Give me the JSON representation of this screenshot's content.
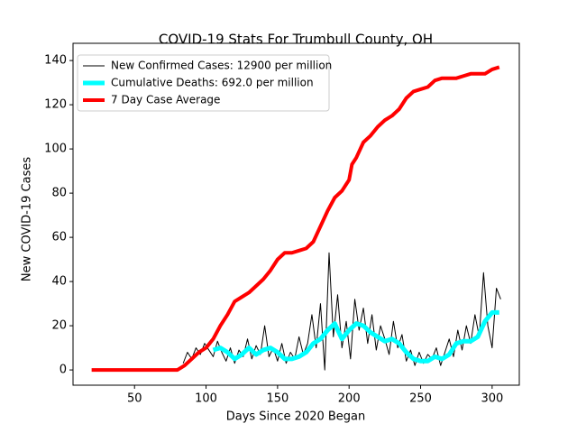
{
  "chart_data": {
    "type": "line",
    "title": "COVID-19 Stats For Trumbull County, OH",
    "x_label": "Days Since 2020 Began",
    "y_label": "New COVID-19 Cases",
    "xlim": [
      7,
      319
    ],
    "ylim": [
      -6.9,
      147.8
    ],
    "xticks": [
      50,
      100,
      150,
      200,
      250,
      300
    ],
    "yticks": [
      0,
      20,
      40,
      60,
      80,
      100,
      120,
      140
    ],
    "legend": "upper left",
    "series": [
      {
        "name": "New Confirmed Cases: 12900 per million",
        "color": "#000000",
        "linewidth": 1,
        "x": [
          84,
          87,
          90,
          93,
          96,
          99,
          102,
          105,
          108,
          111,
          114,
          117,
          120,
          123,
          126,
          129,
          132,
          135,
          138,
          141,
          144,
          147,
          150,
          153,
          156,
          159,
          162,
          165,
          168,
          171,
          174,
          177,
          180,
          183,
          186,
          189,
          192,
          195,
          198,
          201,
          204,
          207,
          210,
          213,
          216,
          219,
          222,
          225,
          228,
          231,
          234,
          237,
          240,
          243,
          246,
          249,
          252,
          255,
          258,
          261,
          264,
          267,
          270,
          273,
          276,
          279,
          282,
          285,
          288,
          291,
          294,
          297,
          300,
          303,
          306
        ],
        "values": [
          3,
          8,
          5,
          10,
          7,
          12,
          9,
          6,
          13,
          8,
          4,
          10,
          3,
          9,
          6,
          14,
          5,
          11,
          7,
          20,
          6,
          10,
          4,
          12,
          3,
          8,
          5,
          15,
          7,
          12,
          25,
          10,
          30,
          0,
          53,
          15,
          34,
          10,
          22,
          5,
          32,
          18,
          28,
          12,
          25,
          9,
          20,
          14,
          7,
          22,
          10,
          16,
          4,
          9,
          2,
          8,
          3,
          7,
          5,
          10,
          2,
          8,
          14,
          6,
          18,
          9,
          20,
          12,
          25,
          15,
          44,
          20,
          10,
          37,
          32
        ]
      },
      {
        "name": "Cumulative Deaths: 692.0 per million",
        "color": "#00ffff",
        "linewidth": 5,
        "x": [
          105,
          110,
          115,
          120,
          125,
          130,
          135,
          140,
          145,
          150,
          155,
          160,
          165,
          170,
          175,
          180,
          185,
          190,
          195,
          200,
          205,
          210,
          215,
          220,
          225,
          230,
          235,
          240,
          245,
          250,
          255,
          260,
          265,
          270,
          275,
          280,
          285,
          290,
          295,
          300,
          305
        ],
        "values": [
          9,
          10,
          8,
          5,
          7,
          10,
          7,
          9,
          10,
          8,
          5,
          5,
          6,
          8,
          12,
          14,
          18,
          21,
          14,
          18,
          21,
          20,
          17,
          15,
          13,
          14,
          12,
          8,
          5,
          4,
          4,
          6,
          5,
          7,
          12,
          13,
          13,
          15,
          22,
          26,
          26
        ]
      },
      {
        "name": "7 Day Case Average",
        "color": "#ff0000",
        "linewidth": 4,
        "x": [
          20,
          80,
          85,
          90,
          95,
          100,
          105,
          110,
          115,
          120,
          125,
          130,
          135,
          140,
          145,
          150,
          155,
          160,
          165,
          170,
          175,
          180,
          185,
          190,
          195,
          200,
          202,
          205,
          210,
          215,
          220,
          225,
          230,
          235,
          240,
          245,
          250,
          255,
          260,
          265,
          270,
          275,
          280,
          285,
          290,
          295,
          300,
          305
        ],
        "values": [
          0,
          0,
          2,
          5,
          8,
          10,
          14,
          20,
          25,
          31,
          33,
          35,
          38,
          41,
          45,
          50,
          53,
          53,
          54,
          55,
          58,
          65,
          72,
          78,
          81,
          86,
          93,
          96,
          103,
          106,
          110,
          113,
          115,
          118,
          123,
          126,
          127,
          128,
          131,
          132,
          132,
          132,
          133,
          134,
          134,
          134,
          136,
          137
        ]
      }
    ]
  }
}
